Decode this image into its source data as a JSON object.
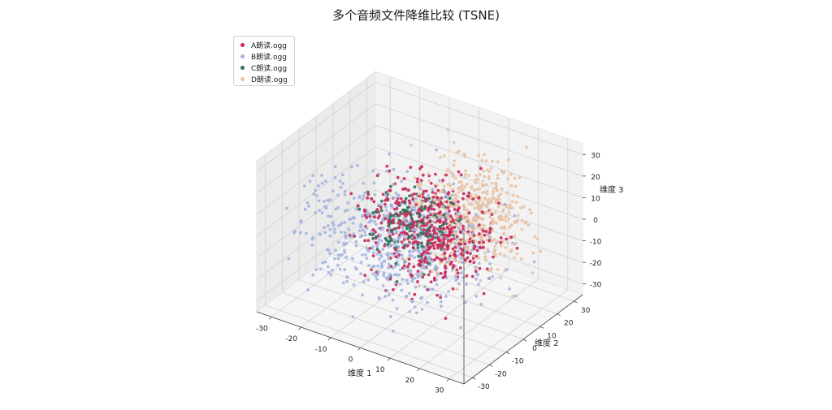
{
  "chart_data": {
    "type": "scatter3d",
    "title": "多个音频文件降维比较 (TSNE)",
    "xlabel": "维度 1",
    "ylabel": "维度 2",
    "zlabel": "维度 3",
    "xlim": [
      -35,
      35
    ],
    "ylim": [
      -35,
      35
    ],
    "zlim": [
      -35,
      35
    ],
    "xticks": [
      -30,
      -20,
      -10,
      0,
      10,
      20,
      30
    ],
    "yticks": [
      -30,
      -20,
      -10,
      0,
      10,
      20,
      30
    ],
    "zticks": [
      -30,
      -20,
      -10,
      0,
      10,
      20,
      30
    ],
    "grid": true,
    "legend_position": "top-left",
    "series": [
      {
        "name": "A朗读.ogg",
        "color": "#c8285a"
      },
      {
        "name": "B朗读.ogg",
        "color": "#a6b6e0"
      },
      {
        "name": "C朗读.ogg",
        "color": "#2f6f5a"
      },
      {
        "name": "D朗读.ogg",
        "color": "#e8c3a6"
      }
    ]
  }
}
